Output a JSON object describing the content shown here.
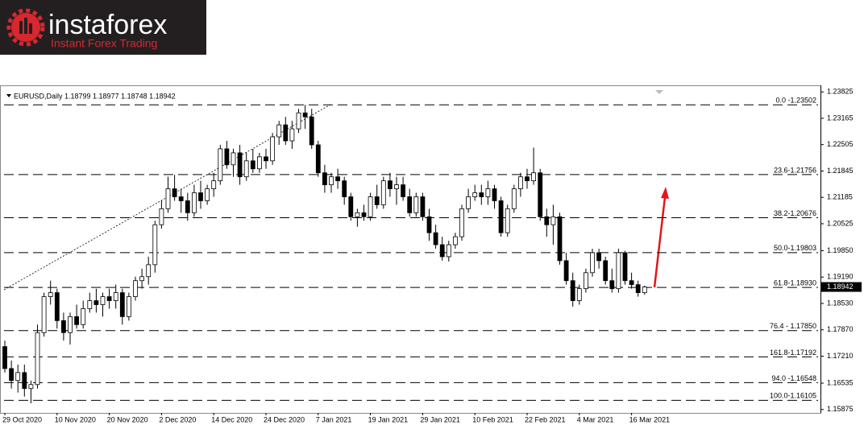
{
  "logo": {
    "name": "instaforex",
    "tagline": "Instant Forex Trading"
  },
  "chart_data": {
    "type": "candlestick",
    "header": "EURUSD,Daily  1.18799 1.18977 1.18748 1.18942",
    "categories": [
      "29 Oct 2020",
      null,
      null,
      null,
      null,
      null,
      null,
      null,
      "10 Nov 2020",
      null,
      null,
      null,
      null,
      null,
      null,
      null,
      "20 Nov 2020",
      null,
      null,
      null,
      null,
      null,
      null,
      null,
      "2 Dec 2020",
      null,
      null,
      null,
      null,
      null,
      null,
      null,
      "14 Dec 2020",
      null,
      null,
      null,
      null,
      null,
      null,
      null,
      "24 Dec 2020",
      null,
      null,
      null,
      null,
      null,
      null,
      null,
      "7 Jan 2021",
      null,
      null,
      null,
      null,
      null,
      null,
      null,
      "19 Jan 2021",
      null,
      null,
      null,
      null,
      null,
      null,
      null,
      "29 Jan 2021",
      null,
      null,
      null,
      null,
      null,
      null,
      null,
      "10 Feb 2021",
      null,
      null,
      null,
      null,
      null,
      null,
      null,
      "22 Feb 2021",
      null,
      null,
      null,
      null,
      null,
      null,
      null,
      "4 Mar 2021",
      null,
      null,
      null,
      null,
      null,
      null,
      null,
      "16 Mar 2021",
      null,
      null
    ],
    "ohlc": [
      [
        1.1745,
        1.176,
        1.168,
        1.169
      ],
      [
        1.169,
        1.171,
        1.164,
        1.166
      ],
      [
        1.166,
        1.17,
        1.163,
        1.168
      ],
      [
        1.168,
        1.17,
        1.162,
        1.164
      ],
      [
        1.164,
        1.166,
        1.1603,
        1.165
      ],
      [
        1.165,
        1.18,
        1.164,
        1.178
      ],
      [
        1.178,
        1.188,
        1.177,
        1.187
      ],
      [
        1.187,
        1.191,
        1.185,
        1.188
      ],
      [
        1.188,
        1.189,
        1.179,
        1.181
      ],
      [
        1.181,
        1.183,
        1.176,
        1.178
      ],
      [
        1.178,
        1.183,
        1.175,
        1.182
      ],
      [
        1.182,
        1.185,
        1.179,
        1.18
      ],
      [
        1.18,
        1.186,
        1.179,
        1.184
      ],
      [
        1.184,
        1.188,
        1.183,
        1.186
      ],
      [
        1.186,
        1.189,
        1.183,
        1.185
      ],
      [
        1.185,
        1.188,
        1.182,
        1.187
      ],
      [
        1.187,
        1.189,
        1.184,
        1.186
      ],
      [
        1.186,
        1.19,
        1.184,
        1.188
      ],
      [
        1.188,
        1.189,
        1.18,
        1.182
      ],
      [
        1.182,
        1.188,
        1.181,
        1.187
      ],
      [
        1.187,
        1.192,
        1.186,
        1.191
      ],
      [
        1.191,
        1.194,
        1.189,
        1.192
      ],
      [
        1.192,
        1.197,
        1.19,
        1.195
      ],
      [
        1.195,
        1.206,
        1.193,
        1.205
      ],
      [
        1.205,
        1.211,
        1.204,
        1.209
      ],
      [
        1.209,
        1.217,
        1.208,
        1.214
      ],
      [
        1.214,
        1.2175,
        1.211,
        1.212
      ],
      [
        1.212,
        1.214,
        1.208,
        1.211
      ],
      [
        1.211,
        1.213,
        1.206,
        1.208
      ],
      [
        1.208,
        1.215,
        1.207,
        1.213
      ],
      [
        1.213,
        1.216,
        1.209,
        1.211
      ],
      [
        1.211,
        1.215,
        1.21,
        1.214
      ],
      [
        1.214,
        1.218,
        1.212,
        1.216
      ],
      [
        1.216,
        1.225,
        1.215,
        1.224
      ],
      [
        1.224,
        1.226,
        1.219,
        1.22
      ],
      [
        1.22,
        1.224,
        1.217,
        1.223
      ],
      [
        1.223,
        1.225,
        1.215,
        1.217
      ],
      [
        1.217,
        1.223,
        1.216,
        1.221
      ],
      [
        1.221,
        1.224,
        1.218,
        1.219
      ],
      [
        1.219,
        1.223,
        1.218,
        1.222
      ],
      [
        1.222,
        1.224,
        1.219,
        1.221
      ],
      [
        1.221,
        1.228,
        1.22,
        1.227
      ],
      [
        1.227,
        1.231,
        1.225,
        1.23
      ],
      [
        1.23,
        1.232,
        1.225,
        1.226
      ],
      [
        1.226,
        1.231,
        1.224,
        1.229
      ],
      [
        1.229,
        1.234,
        1.228,
        1.233
      ],
      [
        1.233,
        1.235,
        1.229,
        1.232
      ],
      [
        1.232,
        1.234,
        1.224,
        1.225
      ],
      [
        1.225,
        1.226,
        1.217,
        1.218
      ],
      [
        1.218,
        1.22,
        1.213,
        1.215
      ],
      [
        1.215,
        1.218,
        1.213,
        1.217
      ],
      [
        1.217,
        1.219,
        1.214,
        1.216
      ],
      [
        1.216,
        1.217,
        1.21,
        1.212
      ],
      [
        1.212,
        1.213,
        1.206,
        1.207
      ],
      [
        1.207,
        1.209,
        1.2045,
        1.208
      ],
      [
        1.208,
        1.21,
        1.206,
        1.207
      ],
      [
        1.207,
        1.213,
        1.206,
        1.212
      ],
      [
        1.212,
        1.215,
        1.209,
        1.21
      ],
      [
        1.21,
        1.217,
        1.209,
        1.216
      ],
      [
        1.216,
        1.218,
        1.212,
        1.214
      ],
      [
        1.214,
        1.217,
        1.21,
        1.215
      ],
      [
        1.215,
        1.217,
        1.211,
        1.212
      ],
      [
        1.212,
        1.214,
        1.207,
        1.208
      ],
      [
        1.208,
        1.213,
        1.207,
        1.212
      ],
      [
        1.212,
        1.213,
        1.206,
        1.207
      ],
      [
        1.207,
        1.209,
        1.201,
        1.203
      ],
      [
        1.203,
        1.205,
        1.199,
        1.2
      ],
      [
        1.2,
        1.202,
        1.196,
        1.197
      ],
      [
        1.197,
        1.201,
        1.1958,
        1.2
      ],
      [
        1.2,
        1.203,
        1.199,
        1.202
      ],
      [
        1.202,
        1.21,
        1.201,
        1.209
      ],
      [
        1.209,
        1.214,
        1.208,
        1.212
      ],
      [
        1.212,
        1.215,
        1.211,
        1.213
      ],
      [
        1.213,
        1.215,
        1.21,
        1.212
      ],
      [
        1.212,
        1.216,
        1.21,
        1.214
      ],
      [
        1.214,
        1.215,
        1.209,
        1.211
      ],
      [
        1.211,
        1.212,
        1.202,
        1.203
      ],
      [
        1.203,
        1.21,
        1.202,
        1.209
      ],
      [
        1.209,
        1.215,
        1.208,
        1.214
      ],
      [
        1.214,
        1.218,
        1.212,
        1.217
      ],
      [
        1.217,
        1.219,
        1.214,
        1.216
      ],
      [
        1.216,
        1.2243,
        1.215,
        1.218
      ],
      [
        1.218,
        1.219,
        1.206,
        1.207
      ],
      [
        1.207,
        1.209,
        1.202,
        1.205
      ],
      [
        1.205,
        1.21,
        1.2,
        1.207
      ],
      [
        1.207,
        1.208,
        1.195,
        1.196
      ],
      [
        1.196,
        1.198,
        1.19,
        1.191
      ],
      [
        1.191,
        1.193,
        1.1845,
        1.186
      ],
      [
        1.186,
        1.19,
        1.185,
        1.189
      ],
      [
        1.189,
        1.194,
        1.188,
        1.193
      ],
      [
        1.193,
        1.199,
        1.192,
        1.198
      ],
      [
        1.198,
        1.199,
        1.194,
        1.196
      ],
      [
        1.196,
        1.197,
        1.19,
        1.191
      ],
      [
        1.191,
        1.194,
        1.188,
        1.189
      ],
      [
        1.189,
        1.199,
        1.188,
        1.198
      ],
      [
        1.198,
        1.1985,
        1.19,
        1.191
      ],
      [
        1.191,
        1.193,
        1.189,
        1.19
      ],
      [
        1.19,
        1.191,
        1.187,
        1.188
      ],
      [
        1.18799,
        1.18977,
        1.18748,
        1.18942
      ]
    ],
    "ylim": [
      1.1579,
      1.2399
    ],
    "yticks": [
      1.23825,
      1.23165,
      1.22505,
      1.21845,
      1.21185,
      1.20525,
      {
        "value": 1.1985,
        "label": "1.19850"
      },
      {
        "value": 1.1919,
        "label": "1.19190"
      },
      {
        "value": 1.1853,
        "label": "1.18530"
      },
      {
        "value": 1.1787,
        "label": "1.17870"
      },
      {
        "value": 1.1721,
        "label": "1.17210"
      },
      1.16535,
      1.15875
    ],
    "levels": [
      {
        "label": "0.0 -1.23502",
        "value": 1.23502
      },
      {
        "label": "23.6-1.21756",
        "value": 1.21756
      },
      {
        "label": "38.2-1.20676",
        "value": 1.20676
      },
      {
        "label": "50.0-1.19803",
        "value": 1.19803
      },
      {
        "label": "61.8-1.18930",
        "value": 1.1893
      },
      {
        "label": "76.4 - 1.17850",
        "value": 1.1785
      },
      {
        "label": "161.8-1.17192",
        "value": 1.17192
      },
      {
        "label": "94.0 -1.16548",
        "value": 1.16548
      },
      {
        "label": "100.0-1.16105",
        "value": 1.16105
      }
    ],
    "last_price": 1.18942
  }
}
